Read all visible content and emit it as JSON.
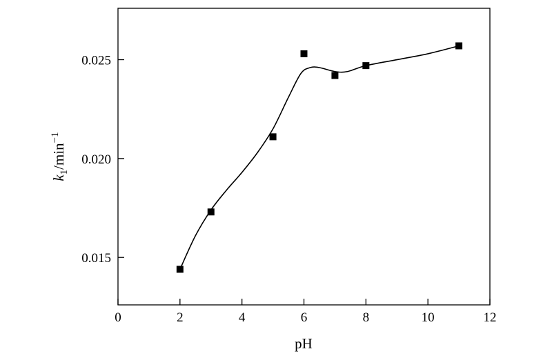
{
  "chart_data": {
    "type": "scatter",
    "xlabel": "pH",
    "ylabel": {
      "base": "k",
      "subscript": "1",
      "unit": "/min",
      "superscript": "−1"
    },
    "xlim": [
      0,
      12
    ],
    "ylim": [
      0.0126,
      0.0276
    ],
    "xticks": [
      0,
      2,
      4,
      6,
      8,
      10,
      12
    ],
    "xtick_labels": [
      "0",
      "2",
      "4",
      "6",
      "8",
      "10",
      "12"
    ],
    "yticks": [
      0.015,
      0.02,
      0.025
    ],
    "ytick_labels": [
      "0.015",
      "0.020",
      "0.025"
    ],
    "grid": false,
    "legend": "none",
    "series": [
      {
        "marker": "square",
        "color": "#000000",
        "points": [
          {
            "x": 2,
            "y": 0.0144
          },
          {
            "x": 3,
            "y": 0.0173
          },
          {
            "x": 5,
            "y": 0.0211
          },
          {
            "x": 6,
            "y": 0.0253
          },
          {
            "x": 7,
            "y": 0.0242
          },
          {
            "x": 8,
            "y": 0.0247
          },
          {
            "x": 11,
            "y": 0.0257
          }
        ]
      }
    ],
    "fit_curve": {
      "color": "#000000",
      "points": [
        {
          "x": 2.0,
          "y": 0.0144
        },
        {
          "x": 2.5,
          "y": 0.0161
        },
        {
          "x": 3.0,
          "y": 0.0174
        },
        {
          "x": 3.5,
          "y": 0.0184
        },
        {
          "x": 4.0,
          "y": 0.0193
        },
        {
          "x": 4.5,
          "y": 0.0203
        },
        {
          "x": 5.0,
          "y": 0.0215
        },
        {
          "x": 5.5,
          "y": 0.0231
        },
        {
          "x": 5.9,
          "y": 0.0243
        },
        {
          "x": 6.2,
          "y": 0.0246
        },
        {
          "x": 6.5,
          "y": 0.0246
        },
        {
          "x": 7.0,
          "y": 0.0244
        },
        {
          "x": 7.4,
          "y": 0.0244
        },
        {
          "x": 8.0,
          "y": 0.0247
        },
        {
          "x": 9.0,
          "y": 0.025
        },
        {
          "x": 10.0,
          "y": 0.0253
        },
        {
          "x": 11.0,
          "y": 0.0257
        }
      ]
    }
  }
}
